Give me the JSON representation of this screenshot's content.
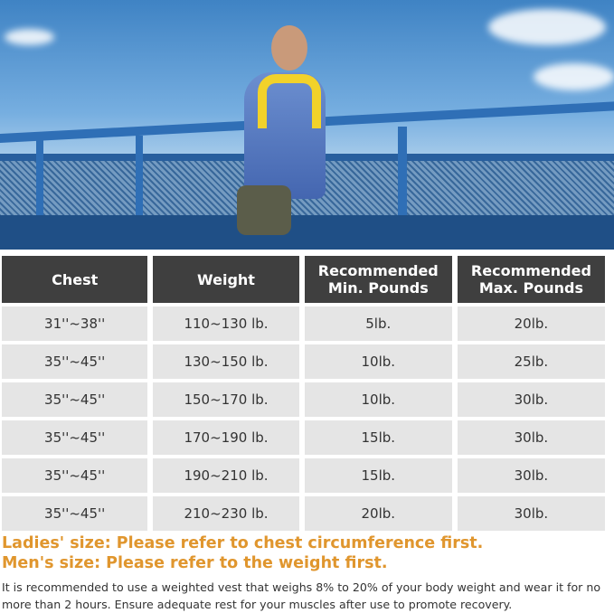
{
  "table": {
    "headers": [
      "Chest",
      "Weight",
      "Recommended\nMin. Pounds",
      "Recommended\nMax. Pounds"
    ],
    "rows": [
      [
        "31''~38''",
        "110~130 lb.",
        "5lb.",
        "20lb."
      ],
      [
        "35''~45''",
        "130~150 lb.",
        "10lb.",
        "25lb."
      ],
      [
        "35''~45''",
        "150~170 lb.",
        "10lb.",
        "30lb."
      ],
      [
        "35''~45''",
        "170~190 lb.",
        "15lb.",
        "30lb."
      ],
      [
        "35''~45''",
        "190~210 lb.",
        "15lb.",
        "30lb."
      ],
      [
        "35''~45''",
        "210~230 lb.",
        "20lb.",
        "30lb."
      ]
    ]
  },
  "notes": {
    "ladies": "Ladies' size: Please refer to chest circumference first.",
    "men": "Men's size: Please refer to the weight first.",
    "body": "It is recommended to use a weighted vest that weighs 8% to 20% of your body weight and wear it for no more than 2 hours. Ensure adequate rest for your muscles after use to promote recovery."
  },
  "colors": {
    "header_bg": "#3f3f3f",
    "cell_bg": "#e5e5e5",
    "highlight": "#e0962e"
  }
}
